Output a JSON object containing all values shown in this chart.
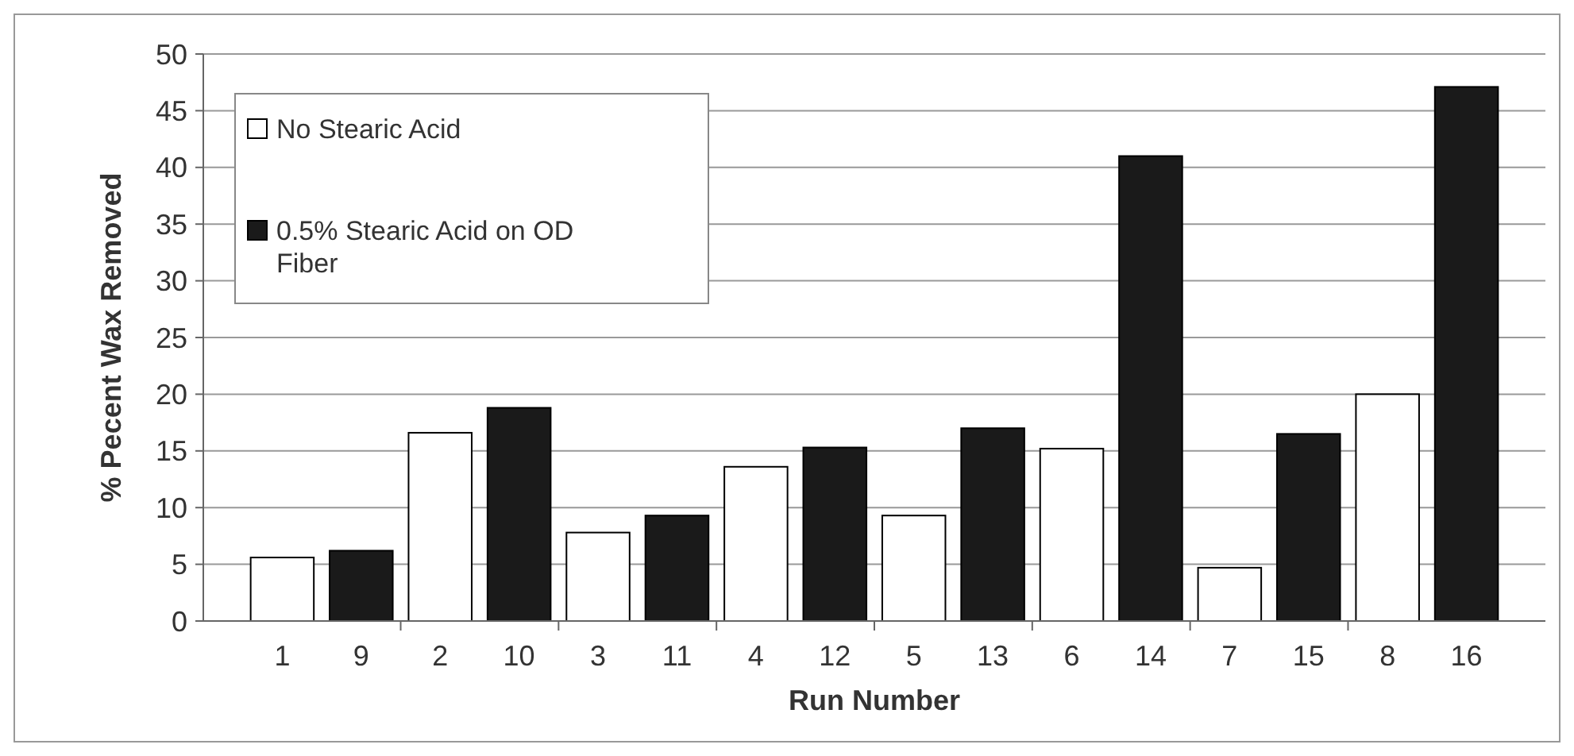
{
  "chart_data": {
    "type": "bar",
    "xlabel": "Run Number",
    "ylabel": "% Pecent Wax Removed",
    "categories": [
      "1",
      "9",
      "2",
      "10",
      "3",
      "11",
      "4",
      "12",
      "5",
      "13",
      "6",
      "14",
      "7",
      "15",
      "8",
      "16"
    ],
    "series": [
      {
        "name": "No Stearic Acid",
        "color": "#ffffff",
        "values": [
          5.6,
          null,
          16.6,
          null,
          7.8,
          null,
          13.6,
          null,
          9.3,
          null,
          15.2,
          null,
          4.7,
          null,
          20.0,
          null
        ]
      },
      {
        "name": "0.5% Stearic Acid on OD Fiber",
        "color": "#1a1a1a",
        "values": [
          null,
          6.2,
          null,
          18.8,
          null,
          9.3,
          null,
          15.3,
          null,
          17.0,
          null,
          41.0,
          null,
          16.5,
          null,
          47.1
        ]
      }
    ],
    "ylim": [
      0,
      50
    ],
    "yticks": [
      0,
      5,
      10,
      15,
      20,
      25,
      30,
      35,
      40,
      45,
      50
    ],
    "grid": "y",
    "legend": "top left"
  }
}
